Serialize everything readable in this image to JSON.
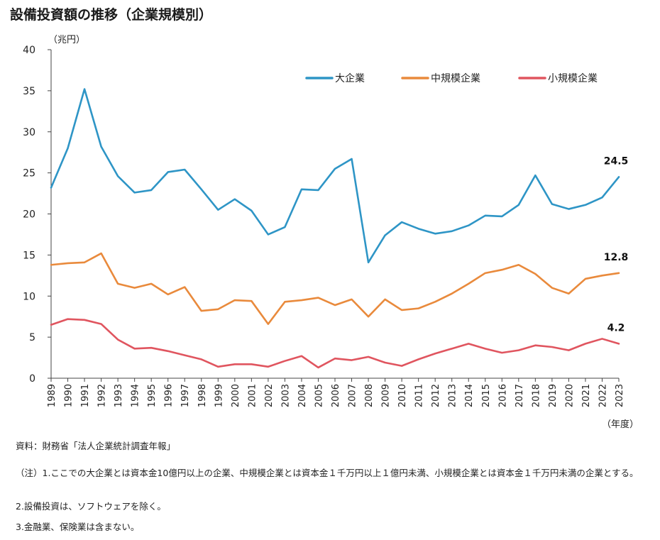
{
  "title": "設備投資額の推移（企業規模別）",
  "chart_data": {
    "type": "line",
    "title": "設備投資額の推移（企業規模別）",
    "ylabel": "（兆円）",
    "xlabel": "（年度）",
    "ylim": [
      0,
      40
    ],
    "yticks": [
      0,
      5,
      10,
      15,
      20,
      25,
      30,
      35,
      40
    ],
    "grid": false,
    "legend_position": "top-right",
    "categories": [
      "1989",
      "1990",
      "1991",
      "1992",
      "1993",
      "1994",
      "1995",
      "1996",
      "1997",
      "1998",
      "1999",
      "2000",
      "2001",
      "2002",
      "2003",
      "2004",
      "2005",
      "2006",
      "2007",
      "2008",
      "2009",
      "2010",
      "2011",
      "2012",
      "2013",
      "2014",
      "2015",
      "2016",
      "2017",
      "2018",
      "2019",
      "2020",
      "2021",
      "2022",
      "2023"
    ],
    "series": [
      {
        "name": "大企業",
        "color": "#2e95c6",
        "values": [
          23.2,
          28.0,
          35.2,
          28.2,
          24.6,
          22.6,
          22.9,
          25.1,
          25.4,
          23.0,
          20.5,
          21.8,
          20.4,
          17.5,
          18.4,
          23.0,
          22.9,
          25.5,
          26.7,
          14.1,
          17.4,
          19.0,
          18.2,
          17.6,
          17.9,
          18.6,
          19.8,
          19.7,
          21.1,
          24.7,
          21.2,
          20.6,
          21.1,
          22.0,
          24.5
        ],
        "end_label": "24.5"
      },
      {
        "name": "中規模企業",
        "color": "#e98a3c",
        "values": [
          13.8,
          14.0,
          14.1,
          15.2,
          11.5,
          11.0,
          11.5,
          10.2,
          11.1,
          8.2,
          8.4,
          9.5,
          9.4,
          6.6,
          9.3,
          9.5,
          9.8,
          8.9,
          9.6,
          7.5,
          9.6,
          8.3,
          8.5,
          9.3,
          10.3,
          11.5,
          12.8,
          13.2,
          13.8,
          12.7,
          11.0,
          10.3,
          12.1,
          12.5,
          12.8
        ],
        "end_label": "12.8"
      },
      {
        "name": "小規模企業",
        "color": "#e0555f",
        "values": [
          6.5,
          7.2,
          7.1,
          6.6,
          4.7,
          3.6,
          3.7,
          3.3,
          2.8,
          2.3,
          1.4,
          1.7,
          1.7,
          1.4,
          2.1,
          2.7,
          1.3,
          2.4,
          2.2,
          2.6,
          1.9,
          1.5,
          2.3,
          3.0,
          3.6,
          4.2,
          3.6,
          3.1,
          3.4,
          4.0,
          3.8,
          3.4,
          4.2,
          4.8,
          4.2
        ],
        "end_label": "4.2"
      }
    ]
  },
  "notes": {
    "source": "資料：財務省「法人企業統計調査年報」",
    "note1": "（注）1.ここでの大企業とは資本金10億円以上の企業、中規模企業とは資本金１千万円以上１億円未満、小規模企業とは資本金１千万円未満の企業とする。",
    "note2": "2.設備投資は、ソフトウェアを除く。",
    "note3": "3.金融業、保険業は含まない。"
  }
}
